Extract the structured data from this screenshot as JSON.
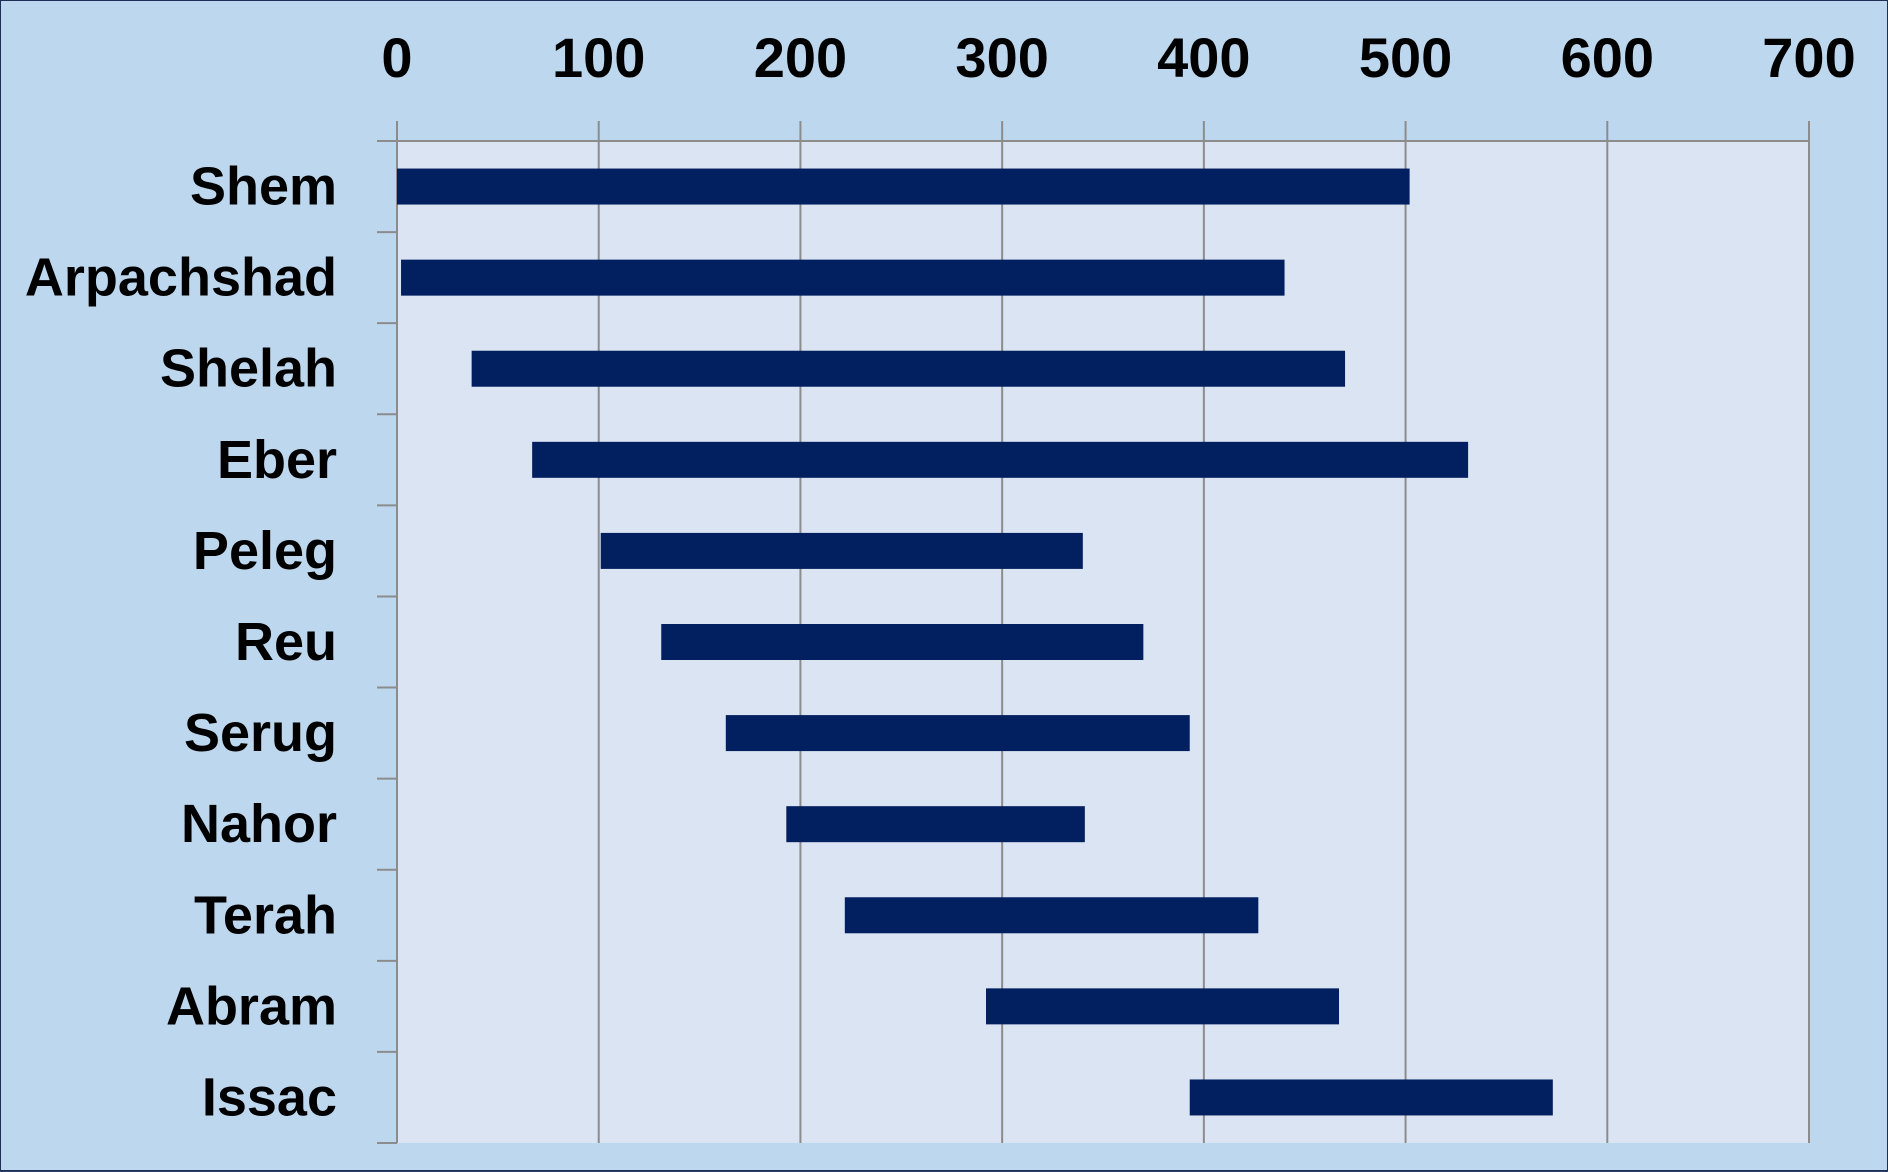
{
  "chart_data": {
    "type": "bar",
    "subtype": "floating-horizontal-range",
    "title": "",
    "xlabel": "",
    "ylabel": "",
    "xlim": [
      0,
      700
    ],
    "x_ticks": [
      "0",
      "100",
      "200",
      "300",
      "400",
      "500",
      "600",
      "700"
    ],
    "x_axis_position": "top",
    "grid": true,
    "legend": "none",
    "categories": [
      "Shem",
      "Arpachshad",
      "Shelah",
      "Eber",
      "Peleg",
      "Reu",
      "Serug",
      "Nahor",
      "Terah",
      "Abram",
      "Issac"
    ],
    "series": [
      {
        "ranges": [
          [
            0,
            502
          ],
          [
            2,
            440
          ],
          [
            37,
            470
          ],
          [
            67,
            531
          ],
          [
            101,
            340
          ],
          [
            131,
            370
          ],
          [
            163,
            393
          ],
          [
            193,
            341
          ],
          [
            222,
            427
          ],
          [
            292,
            467
          ],
          [
            393,
            573
          ]
        ]
      }
    ],
    "colors": {
      "bar": "#022060",
      "plot_background": "#dbe4f3",
      "outer_background": "#bdd7ee",
      "gridline": "#8c8c8c"
    }
  }
}
